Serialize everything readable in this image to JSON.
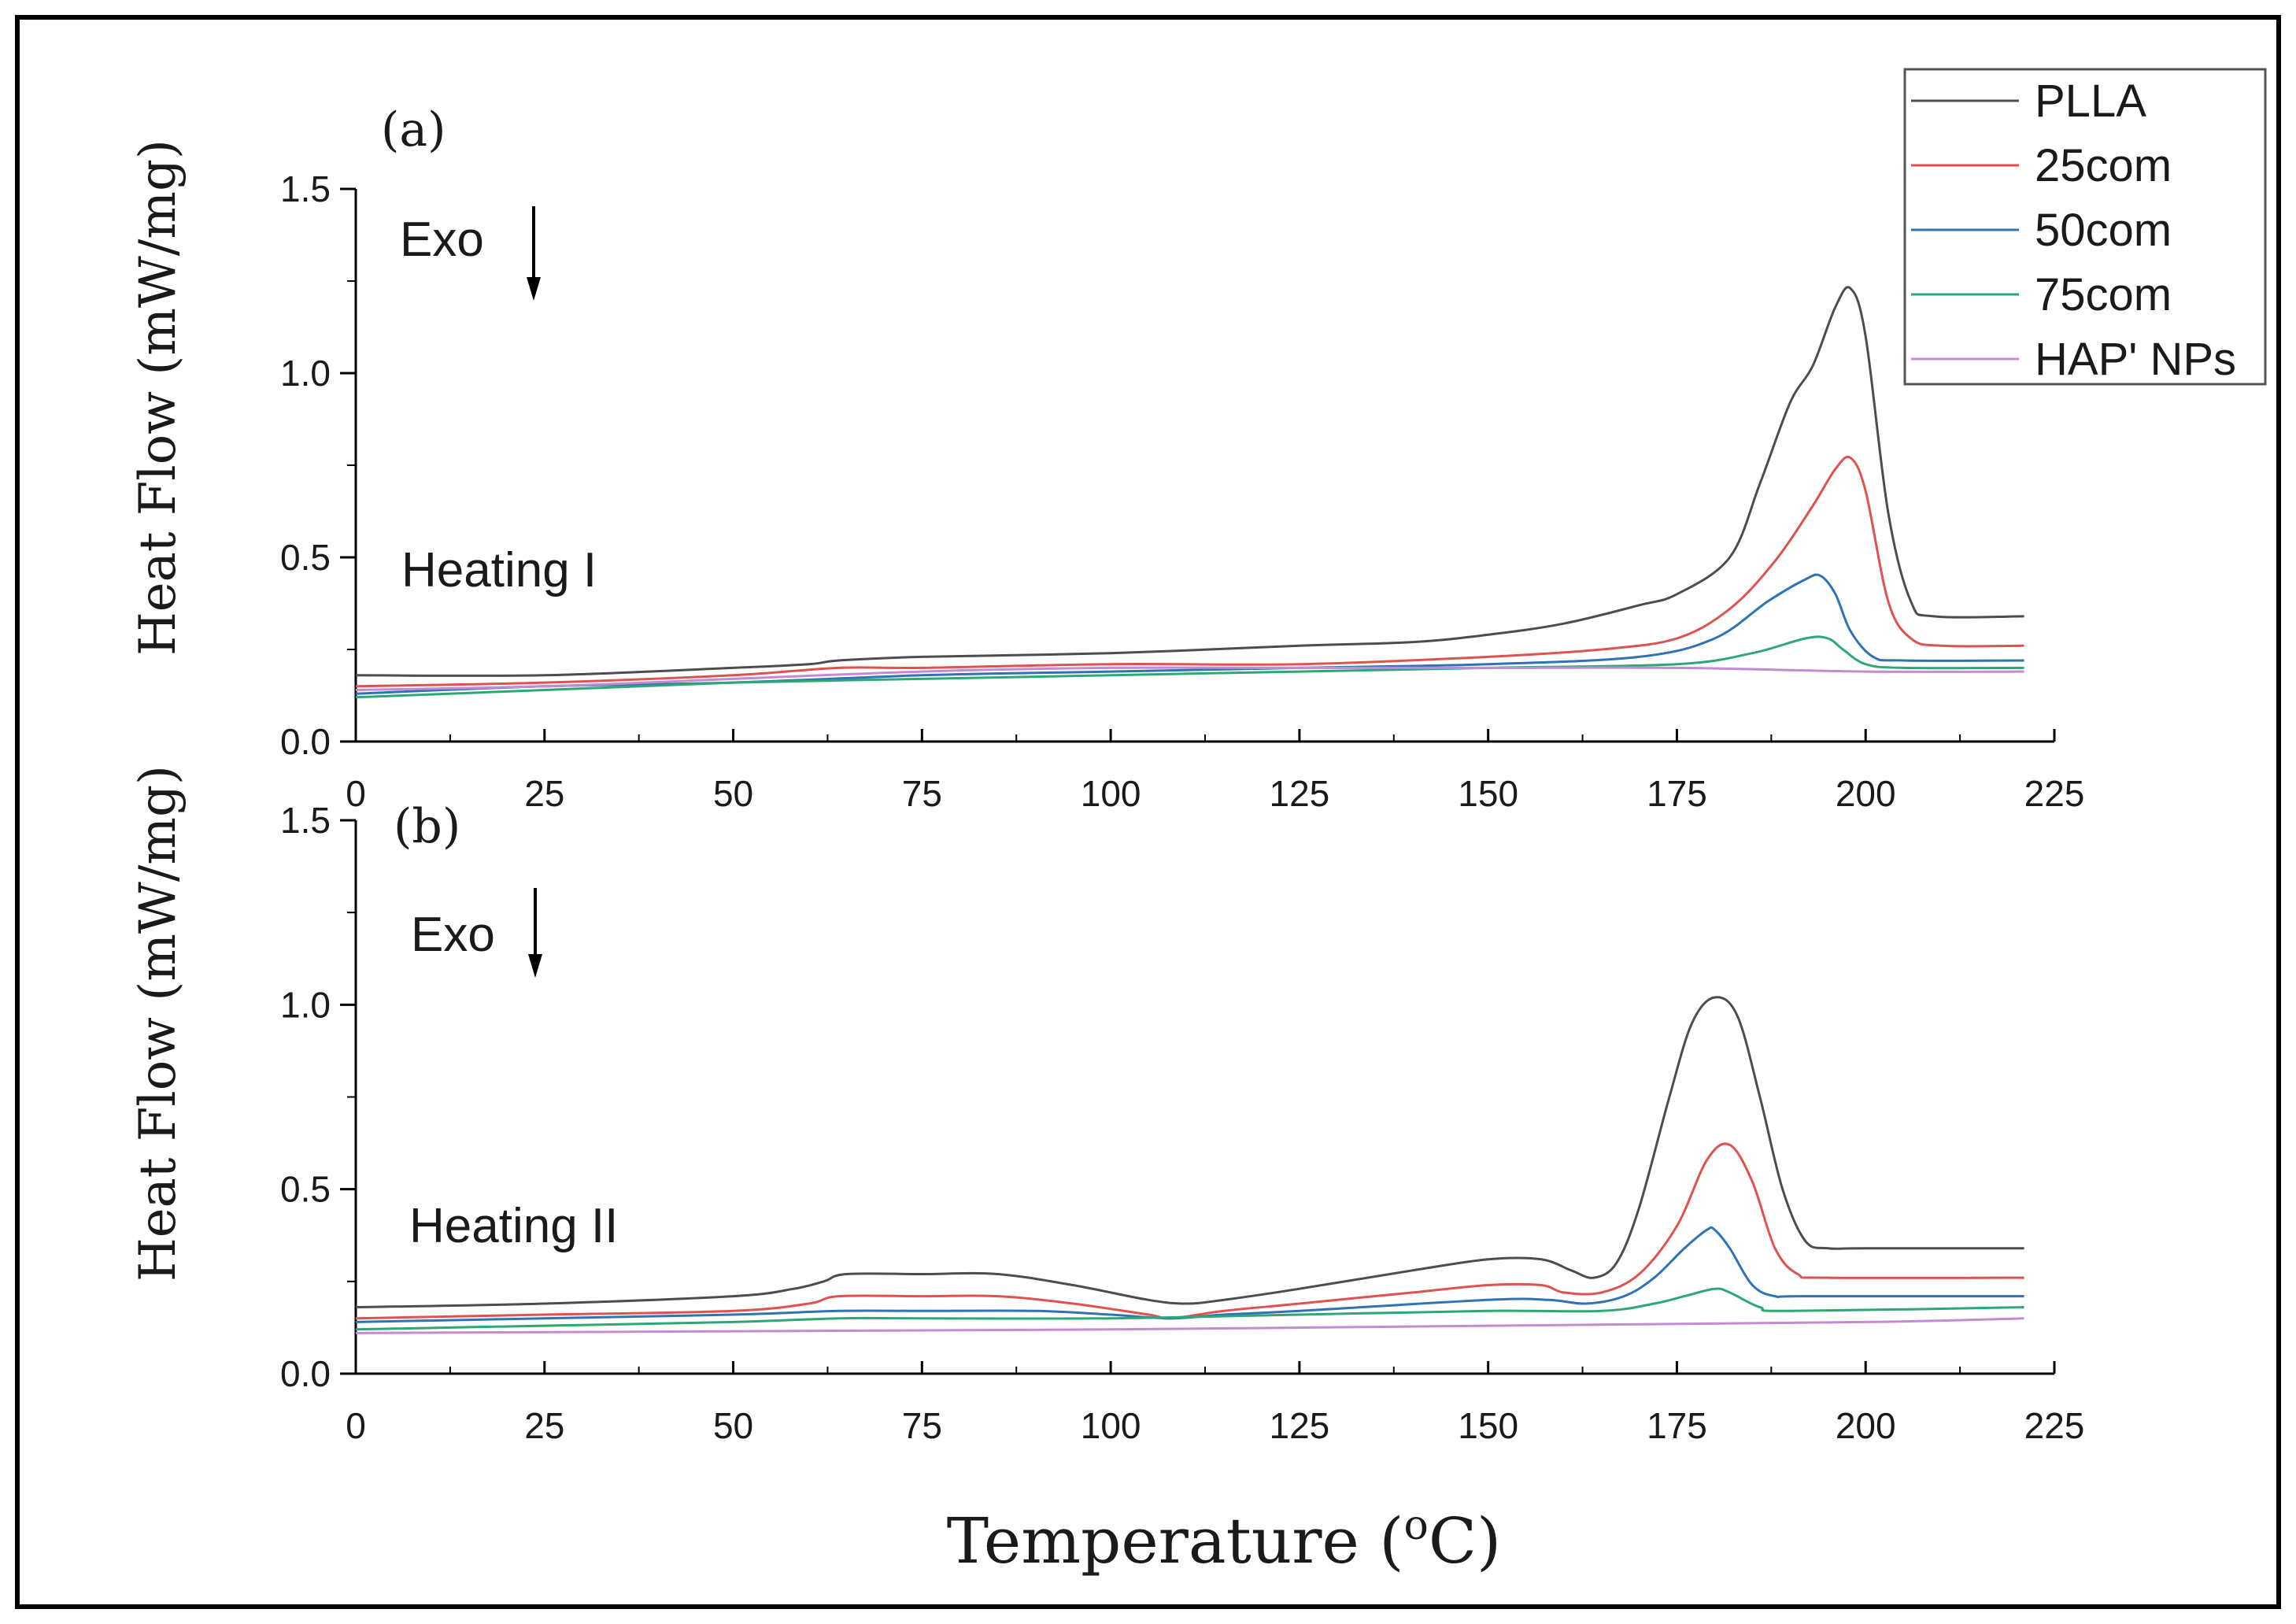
{
  "figure": {
    "xlabel_main": "Temperature (",
    "xlabel_sup": "o",
    "xlabel_end": "C)",
    "ylabel": "Heat Flow (mW/mg)"
  },
  "legend": [
    {
      "name": "PLLA",
      "color": "#4d4d4d"
    },
    {
      "name": "25com",
      "color": "#e0524f"
    },
    {
      "name": "50com",
      "color": "#2f73b4"
    },
    {
      "name": "75com",
      "color": "#2ea776"
    },
    {
      "name": "HAP' NPs",
      "color": "#c58ad4"
    }
  ],
  "chart_data": [
    {
      "type": "line",
      "panel_label": "(a)",
      "annotation": "Heating I",
      "exo_label": "Exo",
      "xlim": [
        0,
        225
      ],
      "ylim": [
        0.0,
        1.5
      ],
      "xticks": [
        "0",
        "25",
        "50",
        "75",
        "100",
        "125",
        "150",
        "175",
        "200",
        "225"
      ],
      "yticks": [
        "0.0",
        "0.5",
        "1.0",
        "1.5"
      ],
      "series": [
        {
          "name": "PLLA",
          "x": [
            0,
            25,
            50,
            60,
            64,
            75,
            100,
            125,
            140,
            150,
            160,
            170,
            175,
            182,
            186,
            190,
            193,
            196,
            198,
            200,
            203,
            206,
            209,
            221
          ],
          "y": [
            0.18,
            0.18,
            0.2,
            0.21,
            0.22,
            0.23,
            0.24,
            0.26,
            0.27,
            0.29,
            0.32,
            0.37,
            0.4,
            0.5,
            0.7,
            0.92,
            1.02,
            1.18,
            1.23,
            1.1,
            0.62,
            0.38,
            0.34,
            0.34
          ]
        },
        {
          "name": "25com",
          "x": [
            0,
            25,
            50,
            64,
            75,
            100,
            125,
            150,
            165,
            175,
            182,
            188,
            193,
            196,
            198,
            200,
            203,
            206,
            210,
            221
          ],
          "y": [
            0.15,
            0.16,
            0.18,
            0.2,
            0.2,
            0.21,
            0.21,
            0.23,
            0.25,
            0.28,
            0.36,
            0.49,
            0.64,
            0.74,
            0.77,
            0.68,
            0.38,
            0.28,
            0.26,
            0.26
          ]
        },
        {
          "name": "50com",
          "x": [
            0,
            25,
            50,
            75,
            100,
            125,
            150,
            170,
            180,
            187,
            192,
            194,
            196,
            198,
            201,
            205,
            221
          ],
          "y": [
            0.13,
            0.15,
            0.16,
            0.18,
            0.19,
            0.2,
            0.21,
            0.23,
            0.28,
            0.38,
            0.44,
            0.45,
            0.4,
            0.3,
            0.23,
            0.22,
            0.22
          ]
        },
        {
          "name": "75com",
          "x": [
            0,
            25,
            50,
            75,
            100,
            125,
            150,
            175,
            185,
            192,
            195,
            197,
            200,
            205,
            221
          ],
          "y": [
            0.12,
            0.14,
            0.16,
            0.17,
            0.18,
            0.19,
            0.2,
            0.21,
            0.24,
            0.28,
            0.28,
            0.25,
            0.21,
            0.2,
            0.2
          ]
        },
        {
          "name": "HAP' NPs",
          "x": [
            0,
            25,
            50,
            75,
            100,
            125,
            150,
            175,
            200,
            221
          ],
          "y": [
            0.14,
            0.15,
            0.17,
            0.19,
            0.2,
            0.2,
            0.2,
            0.2,
            0.19,
            0.19
          ]
        }
      ]
    },
    {
      "type": "line",
      "panel_label": "(b)",
      "annotation": "Heating II",
      "exo_label": "Exo",
      "xlim": [
        0,
        225
      ],
      "ylim": [
        0.0,
        1.5
      ],
      "xticks": [
        "0",
        "25",
        "50",
        "75",
        "100",
        "125",
        "150",
        "175",
        "200",
        "225"
      ],
      "yticks": [
        "0.0",
        "0.5",
        "1.0",
        "1.5"
      ],
      "series": [
        {
          "name": "PLLA",
          "x": [
            0,
            25,
            50,
            58,
            62,
            65,
            75,
            85,
            95,
            105,
            110,
            115,
            125,
            140,
            150,
            157,
            161,
            164,
            167,
            170,
            174,
            177,
            180,
            183,
            186,
            189,
            192,
            195,
            200,
            221
          ],
          "y": [
            0.18,
            0.19,
            0.21,
            0.23,
            0.25,
            0.27,
            0.27,
            0.27,
            0.24,
            0.2,
            0.19,
            0.2,
            0.23,
            0.28,
            0.31,
            0.31,
            0.28,
            0.26,
            0.3,
            0.45,
            0.75,
            0.95,
            1.02,
            0.97,
            0.75,
            0.5,
            0.36,
            0.34,
            0.34,
            0.34
          ]
        },
        {
          "name": "25com",
          "x": [
            0,
            25,
            50,
            60,
            64,
            75,
            85,
            95,
            105,
            108,
            115,
            125,
            140,
            150,
            157,
            160,
            165,
            170,
            175,
            179,
            182,
            185,
            188,
            191,
            195,
            221
          ],
          "y": [
            0.15,
            0.16,
            0.17,
            0.19,
            0.21,
            0.21,
            0.21,
            0.19,
            0.16,
            0.15,
            0.17,
            0.19,
            0.22,
            0.24,
            0.24,
            0.22,
            0.22,
            0.27,
            0.4,
            0.58,
            0.62,
            0.52,
            0.34,
            0.27,
            0.26,
            0.26
          ]
        },
        {
          "name": "50com",
          "x": [
            0,
            25,
            50,
            64,
            75,
            90,
            100,
            108,
            115,
            125,
            150,
            158,
            163,
            168,
            172,
            176,
            179,
            180,
            182,
            185,
            188,
            192,
            221
          ],
          "y": [
            0.14,
            0.15,
            0.16,
            0.17,
            0.17,
            0.17,
            0.16,
            0.15,
            0.16,
            0.17,
            0.2,
            0.2,
            0.19,
            0.21,
            0.26,
            0.34,
            0.39,
            0.39,
            0.34,
            0.24,
            0.21,
            0.21,
            0.21
          ]
        },
        {
          "name": "75com",
          "x": [
            0,
            25,
            50,
            64,
            75,
            100,
            125,
            150,
            165,
            172,
            176,
            180,
            182,
            186,
            190,
            221
          ],
          "y": [
            0.12,
            0.13,
            0.14,
            0.15,
            0.15,
            0.15,
            0.16,
            0.17,
            0.17,
            0.19,
            0.21,
            0.23,
            0.22,
            0.18,
            0.17,
            0.18
          ]
        },
        {
          "name": "HAP' NPs",
          "x": [
            0,
            50,
            100,
            150,
            200,
            221
          ],
          "y": [
            0.11,
            0.115,
            0.12,
            0.13,
            0.14,
            0.15
          ]
        }
      ]
    }
  ]
}
